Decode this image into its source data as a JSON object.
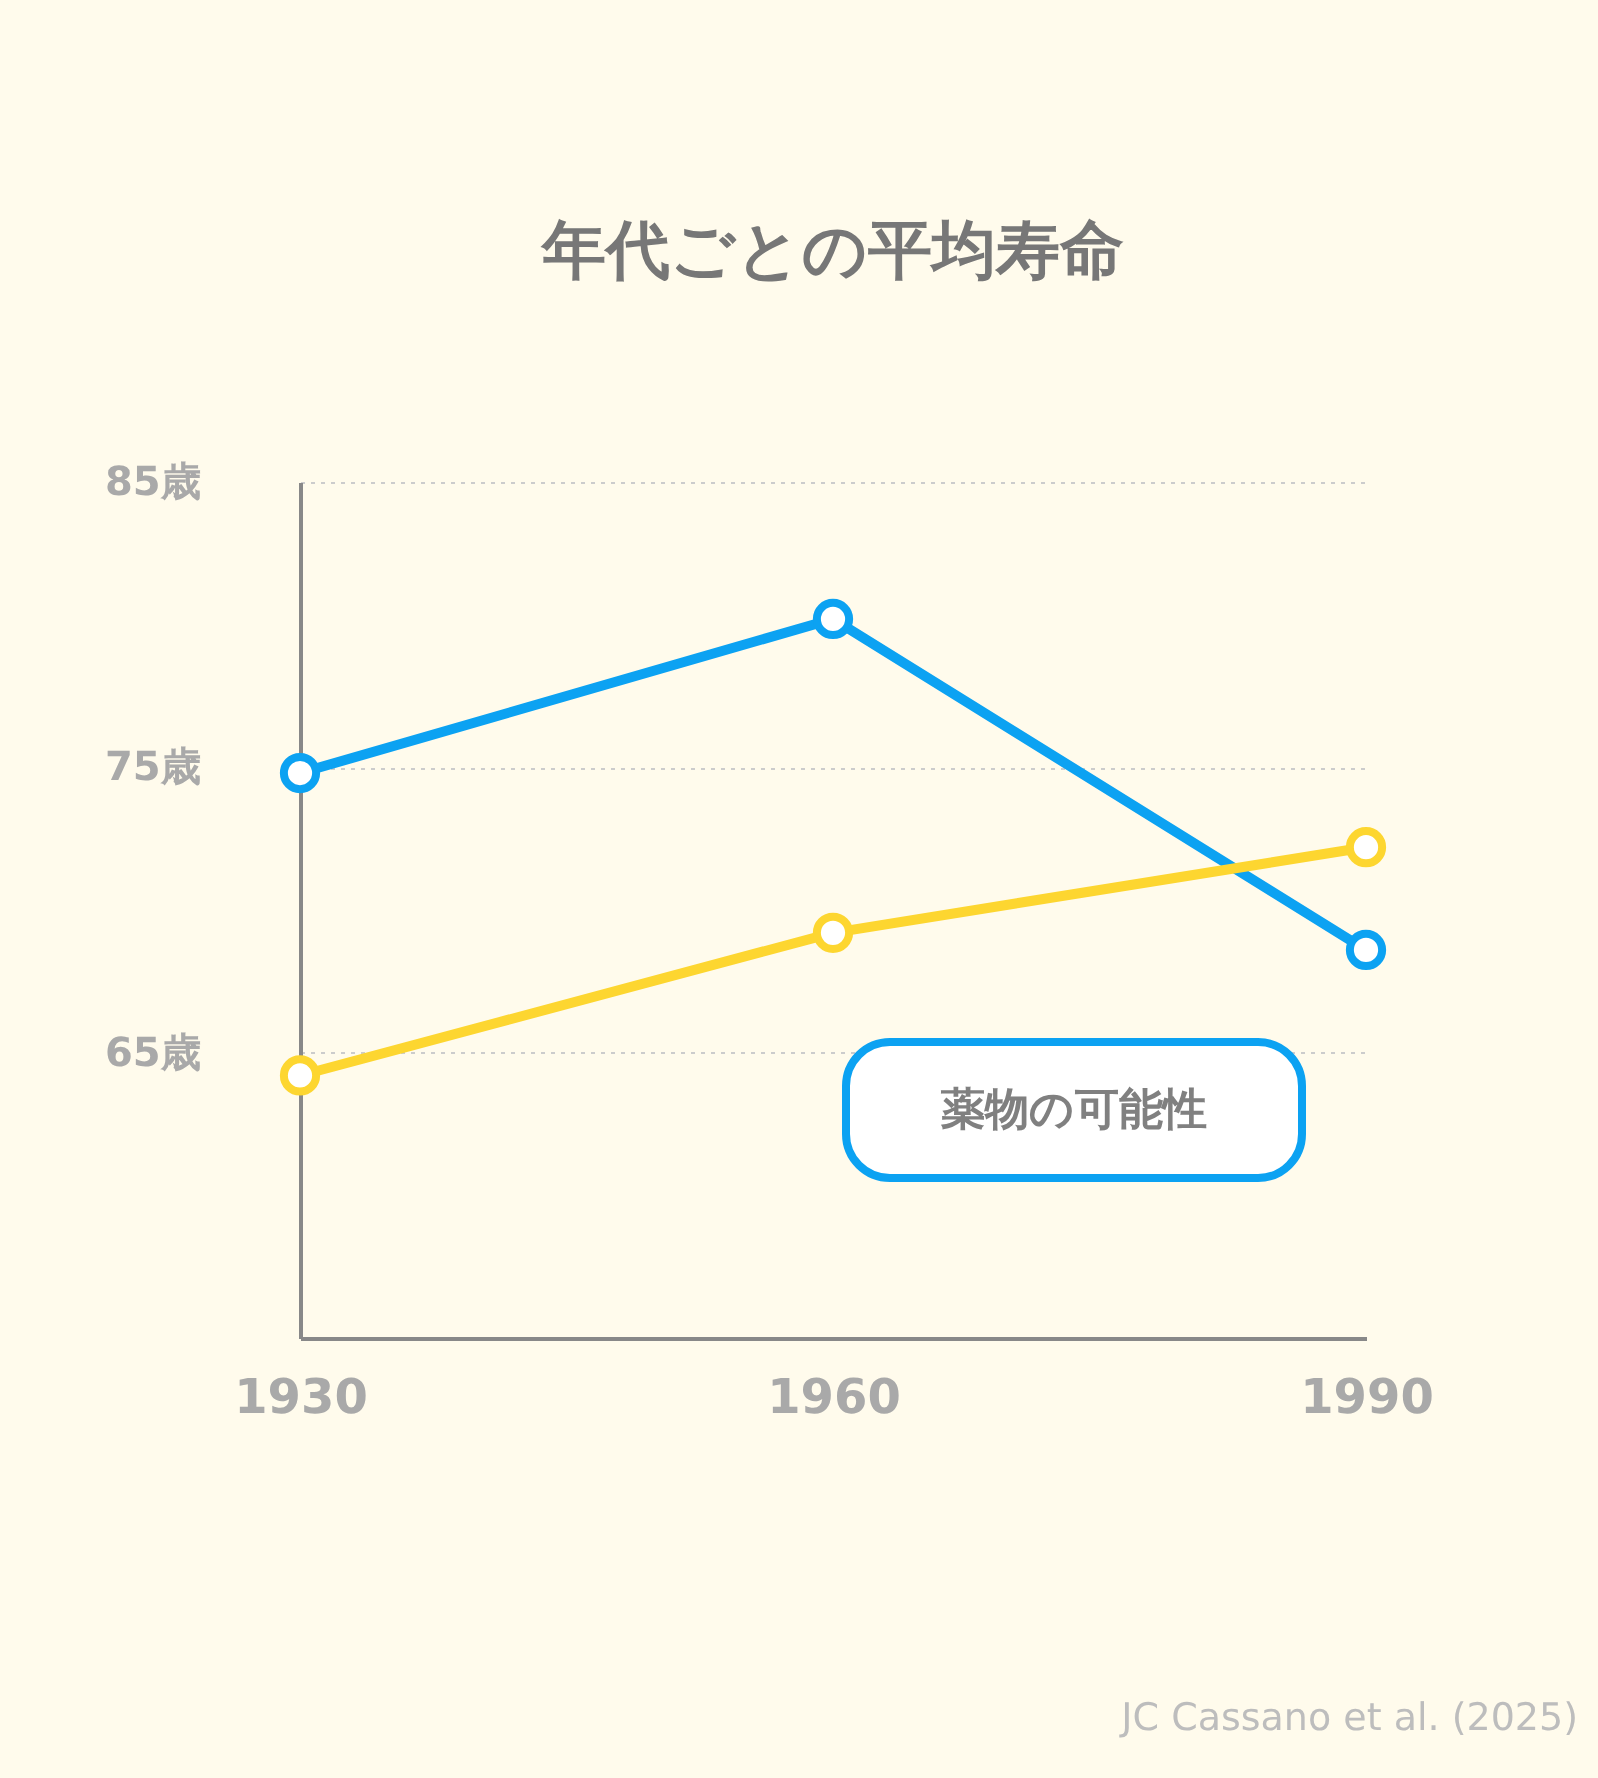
{
  "chart_data": {
    "type": "line",
    "title": "年代ごとの平均寿命",
    "x": [
      1930,
      1960,
      1990
    ],
    "xlim": [
      1930,
      1990
    ],
    "xticks": [
      1930,
      1960,
      1990
    ],
    "ylim": [
      55,
      85
    ],
    "yticks": [
      {
        "value": 65,
        "label": "65歳"
      },
      {
        "value": 75,
        "label": "75歳"
      },
      {
        "value": 85,
        "label": "85歳"
      }
    ],
    "series": [
      {
        "color": "#0ca2f2",
        "values": [
          74.8,
          80.2,
          68.6
        ]
      },
      {
        "color": "#fdd630",
        "values": [
          64.2,
          69.2,
          72.2
        ]
      }
    ],
    "marker": "circle",
    "line_style": "solid",
    "grid": "y",
    "legend": false,
    "annotations": [
      "薬物の可能性",
      "JC Cassano et al. (2025)"
    ]
  }
}
